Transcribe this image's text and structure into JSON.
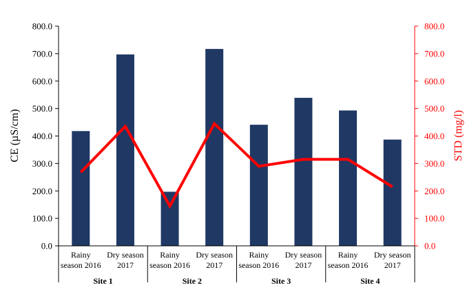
{
  "chart_data": {
    "type": "bar",
    "categories": [
      [
        "Rainy",
        "season 2016"
      ],
      [
        "Dry season",
        "2017"
      ],
      [
        "Rainy",
        "season 2016"
      ],
      [
        "Dry season",
        "2017"
      ],
      [
        "Rainy",
        "season 2016"
      ],
      [
        "Dry season",
        "2017"
      ],
      [
        "Rainy",
        "season 2016"
      ],
      [
        "Dry season",
        "2017"
      ]
    ],
    "groups": [
      "Site 1",
      "Site 2",
      "Site 3",
      "Site 4"
    ],
    "series": [
      {
        "values": [
          418,
          697,
          197,
          717,
          441,
          539,
          493,
          387
        ],
        "axis": "left",
        "type": "bar",
        "color": "#1f3864"
      },
      {
        "values": [
          268,
          435,
          145,
          445,
          290,
          315,
          315,
          215
        ],
        "axis": "right",
        "type": "line",
        "color": "#ff0000"
      }
    ],
    "ylabel": "CE (µS/cm)",
    "y2label": "STD (mg/l)",
    "ylim": [
      0,
      800
    ],
    "y2lim": [
      0,
      800
    ],
    "yticks": [
      "0.0",
      "100.0",
      "200.0",
      "300.0",
      "400.0",
      "500.0",
      "600.0",
      "700.0",
      "800.0"
    ],
    "y2ticks": [
      "0.0",
      "100.0",
      "200.0",
      "300.0",
      "400.0",
      "500.0",
      "600.0",
      "700.0",
      "800.0"
    ],
    "grid": false,
    "legend": "none"
  }
}
